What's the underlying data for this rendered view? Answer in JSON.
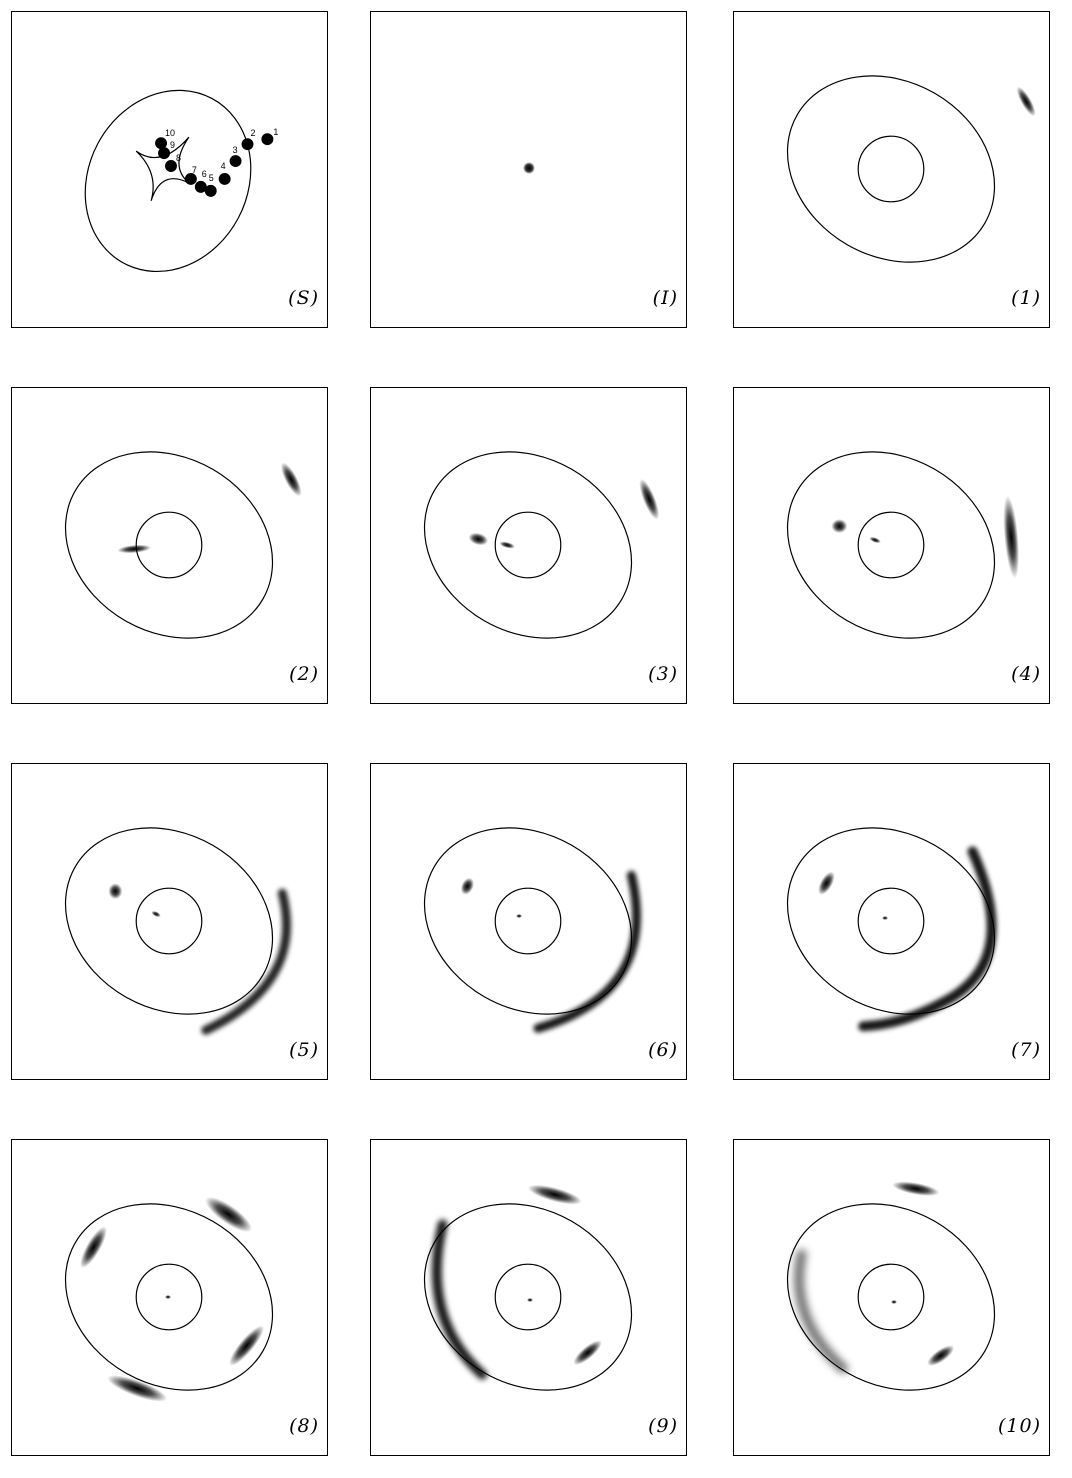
{
  "figure": {
    "source_label": "(S)",
    "image_label": "(I)",
    "point_labels": [
      "1",
      "2",
      "3",
      "4",
      "5",
      "6",
      "7",
      "8",
      "9",
      "10"
    ],
    "panels": [
      {
        "label": "(1)"
      },
      {
        "label": "(2)"
      },
      {
        "label": "(3)"
      },
      {
        "label": "(4)"
      },
      {
        "label": "(5)"
      },
      {
        "label": "(6)"
      },
      {
        "label": "(7)"
      },
      {
        "label": "(8)"
      },
      {
        "label": "(9)"
      },
      {
        "label": "(10)"
      }
    ]
  },
  "colors": {
    "line": "#000000",
    "background": "#ffffff",
    "image": "#000000"
  }
}
